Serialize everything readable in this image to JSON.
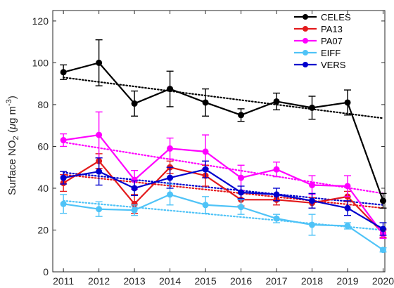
{
  "chart_data": {
    "type": "line",
    "title": "",
    "xlabel": "",
    "ylabel": {
      "main": "Surface NO",
      "sub": "2",
      "unit_open": " (",
      "unit_mu": "μ",
      "unit_g": "g m",
      "unit_sup": "-3",
      "unit_close": ")"
    },
    "x": [
      2011,
      2012,
      2013,
      2014,
      2015,
      2016,
      2017,
      2018,
      2019,
      2020
    ],
    "xlim": [
      2010.7,
      2020.05
    ],
    "ylim": [
      0,
      125
    ],
    "yticks": [
      0,
      20,
      40,
      60,
      80,
      100,
      120
    ],
    "grid": false,
    "legend_position": "top-right",
    "series": [
      {
        "name": "CELES",
        "color": "#000000",
        "values": [
          95.5,
          100,
          80.5,
          87.5,
          81,
          75,
          81.5,
          78.5,
          81,
          34
        ],
        "err": [
          3.5,
          11,
          6,
          8.5,
          6.5,
          3,
          4,
          5.5,
          6,
          3.5
        ],
        "trend": [
          93,
          73.5
        ]
      },
      {
        "name": "PA13",
        "color": "#e31a1c",
        "values": [
          42.5,
          53,
          32.5,
          50,
          46,
          34.5,
          34.5,
          33,
          36,
          18.5
        ],
        "err": [
          4,
          3.5,
          4.5,
          3,
          5,
          3,
          2.5,
          2.5,
          2.5,
          2
        ],
        "trend": [
          46.5,
          30.5
        ]
      },
      {
        "name": "PA07",
        "color": "#ff00ff",
        "values": [
          63,
          65.5,
          44,
          59,
          57.5,
          45,
          49,
          41.5,
          41,
          18
        ],
        "err": [
          3,
          11,
          4.5,
          5,
          8,
          6,
          3.5,
          4.5,
          5,
          2
        ],
        "trend": [
          62,
          37.5
        ]
      },
      {
        "name": "EIFF",
        "color": "#4fc3f7",
        "values": [
          32.5,
          30,
          29.5,
          37,
          32,
          31,
          25.5,
          22.5,
          22,
          10.5
        ],
        "err": [
          4.5,
          3.5,
          2.5,
          5,
          4,
          3.5,
          2,
          5,
          1.5,
          1
        ],
        "trend": [
          34,
          20
        ]
      },
      {
        "name": "VERS",
        "color": "#0000cd",
        "values": [
          45,
          48,
          40,
          45,
          49,
          38,
          37,
          34,
          30.5,
          20.5
        ],
        "err": [
          3,
          6.5,
          3.5,
          5,
          4,
          3,
          3,
          3.5,
          3.5,
          3
        ],
        "trend": [
          47.5,
          32
        ]
      }
    ]
  }
}
